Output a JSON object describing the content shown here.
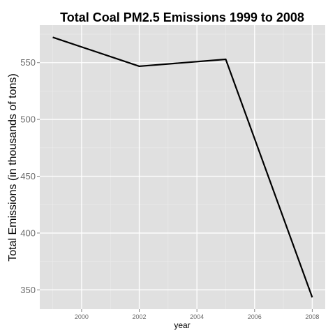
{
  "chart_data": {
    "type": "line",
    "title": "Total Coal PM2.5 Emissions 1999 to 2008",
    "xlabel": "year",
    "ylabel": "Total Emissions (in thousands of tons)",
    "x": [
      1999,
      2002,
      2005,
      2008
    ],
    "series": [
      {
        "values": [
          572.3,
          546.8,
          552.9,
          343.4
        ]
      }
    ],
    "xlim": [
      1998.55,
      2008.45
    ],
    "ylim": [
      333,
      583
    ],
    "xticks": [
      2000,
      2002,
      2004,
      2006,
      2008
    ],
    "yticks": [
      350,
      400,
      450,
      500,
      550
    ],
    "xtick_labels": [
      "2000",
      "2002",
      "2004",
      "2006",
      "2008"
    ],
    "ytick_labels": [
      "350",
      "400",
      "450",
      "500",
      "550"
    ],
    "grid": true,
    "legend": "none",
    "colors": {
      "panel_background": "#e0e0e0",
      "grid_major": "#ffffff",
      "grid_minor": "#ececec",
      "line": "#000000"
    }
  }
}
